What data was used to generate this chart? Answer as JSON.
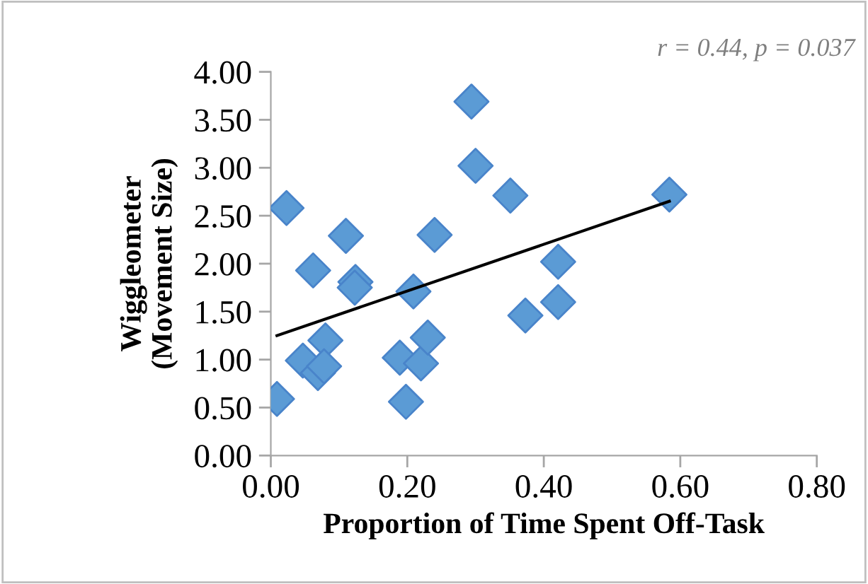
{
  "chart_data": {
    "type": "scatter",
    "xlabel": "Proportion of Time Spent Off-Task",
    "ylabel": "Wiggleometer\n(Movement Size)",
    "annotations": [
      "r = 0.44, p = 0.037"
    ],
    "series": [
      {
        "color": "#5b9bd5",
        "marker": "diamond",
        "x": [
          0.009,
          0.023,
          0.047,
          0.062,
          0.069,
          0.08,
          0.078,
          0.11,
          0.124,
          0.123,
          0.189,
          0.198,
          0.209,
          0.22,
          0.23,
          0.24,
          0.294,
          0.3,
          0.351,
          0.421,
          0.421,
          0.373,
          0.584
        ],
        "values": [
          0.59,
          2.58,
          0.99,
          1.93,
          0.86,
          1.2,
          0.93,
          2.29,
          1.81,
          1.75,
          1.02,
          0.56,
          1.71,
          0.96,
          1.23,
          2.3,
          3.69,
          3.02,
          2.71,
          2.02,
          1.6,
          1.46,
          2.72
        ]
      },
      {
        "type": "line",
        "color": "#000000",
        "line_style": "solid",
        "marker": "none",
        "x": [
          0.009,
          0.584
        ],
        "values": [
          1.25,
          2.65
        ]
      }
    ],
    "xlim": [
      0,
      0.8
    ],
    "xticks": [
      {
        "value": 0,
        "label": "0.00"
      },
      {
        "value": 0.2,
        "label": "0.20"
      },
      {
        "value": 0.4,
        "label": "0.40"
      },
      {
        "value": 0.6,
        "label": "0.60"
      },
      {
        "value": 0.8,
        "label": "0.80"
      }
    ],
    "ylim": [
      0,
      4
    ],
    "yticks": [
      {
        "value": 0,
        "label": "0.00"
      },
      {
        "value": 0.5,
        "label": "0.50"
      },
      {
        "value": 1,
        "label": "1.00"
      },
      {
        "value": 1.5,
        "label": "1.50"
      },
      {
        "value": 2,
        "label": "2.00"
      },
      {
        "value": 2.5,
        "label": "2.50"
      },
      {
        "value": 3,
        "label": "3.00"
      },
      {
        "value": 3.5,
        "label": "3.50"
      },
      {
        "value": 4,
        "label": "4.00"
      }
    ],
    "grid": false,
    "legend": false
  }
}
